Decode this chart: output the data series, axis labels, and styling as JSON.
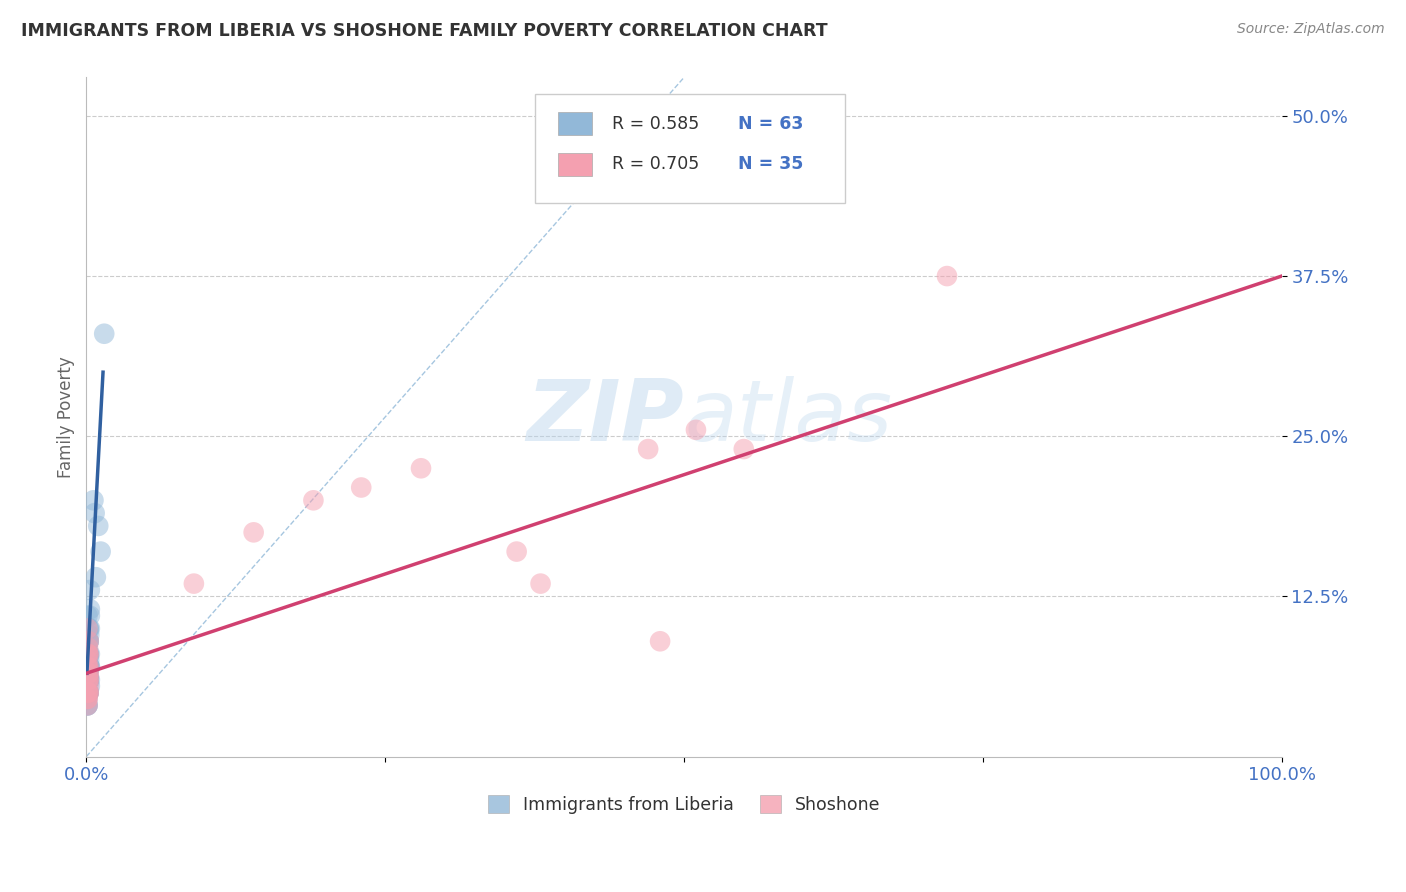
{
  "title": "IMMIGRANTS FROM LIBERIA VS SHOSHONE FAMILY POVERTY CORRELATION CHART",
  "source_text": "Source: ZipAtlas.com",
  "ylabel": "Family Poverty",
  "watermark": "ZIPatlas",
  "xlim": [
    0.0,
    1.0
  ],
  "ylim": [
    0.0,
    0.53
  ],
  "xticks": [
    0.0,
    0.25,
    0.5,
    0.75,
    1.0
  ],
  "xtick_labels": [
    "0.0%",
    "",
    "",
    "",
    "100.0%"
  ],
  "ytick_positions": [
    0.125,
    0.25,
    0.375,
    0.5
  ],
  "ytick_labels": [
    "12.5%",
    "25.0%",
    "37.5%",
    "50.0%"
  ],
  "series1_color": "#92b8d8",
  "series2_color": "#f4a0b0",
  "trend1_color": "#3060a0",
  "trend2_color": "#d04070",
  "legend_r1": "R = 0.585",
  "legend_n1": "N = 63",
  "legend_r2": "R = 0.705",
  "legend_n2": "N = 35",
  "legend_label1": "Immigrants from Liberia",
  "legend_label2": "Shoshone",
  "background_color": "#ffffff",
  "grid_color": "#cccccc",
  "blue_scatter_x": [
    0.001,
    0.0015,
    0.002,
    0.001,
    0.002,
    0.003,
    0.001,
    0.002,
    0.001,
    0.002,
    0.003,
    0.002,
    0.001,
    0.0025,
    0.002,
    0.001,
    0.003,
    0.002,
    0.001,
    0.001,
    0.001,
    0.002,
    0.0015,
    0.001,
    0.002,
    0.001,
    0.0025,
    0.002,
    0.001,
    0.002,
    0.003,
    0.001,
    0.002,
    0.001,
    0.002,
    0.002,
    0.001,
    0.001,
    0.002,
    0.003,
    0.001,
    0.002,
    0.001,
    0.002,
    0.002,
    0.001,
    0.002,
    0.003,
    0.001,
    0.002,
    0.003,
    0.002,
    0.002,
    0.001,
    0.002,
    0.003,
    0.008,
    0.006,
    0.01,
    0.007,
    0.012,
    0.015,
    0.003
  ],
  "blue_scatter_y": [
    0.05,
    0.07,
    0.09,
    0.11,
    0.065,
    0.055,
    0.08,
    0.1,
    0.04,
    0.05,
    0.06,
    0.07,
    0.05,
    0.075,
    0.06,
    0.085,
    0.07,
    0.08,
    0.05,
    0.04,
    0.06,
    0.05,
    0.07,
    0.08,
    0.06,
    0.05,
    0.095,
    0.07,
    0.09,
    0.06,
    0.08,
    0.05,
    0.06,
    0.07,
    0.09,
    0.1,
    0.08,
    0.06,
    0.05,
    0.07,
    0.04,
    0.06,
    0.045,
    0.08,
    0.07,
    0.06,
    0.09,
    0.1,
    0.05,
    0.06,
    0.11,
    0.08,
    0.07,
    0.05,
    0.06,
    0.115,
    0.14,
    0.2,
    0.18,
    0.19,
    0.16,
    0.33,
    0.13
  ],
  "pink_scatter_x": [
    0.001,
    0.002,
    0.001,
    0.002,
    0.001,
    0.0015,
    0.002,
    0.001,
    0.002,
    0.001,
    0.002,
    0.001,
    0.0015,
    0.002,
    0.001,
    0.002,
    0.001,
    0.002,
    0.001,
    0.002,
    0.001,
    0.001,
    0.002,
    0.09,
    0.14,
    0.19,
    0.23,
    0.28,
    0.36,
    0.47,
    0.55,
    0.72,
    0.51,
    0.38,
    0.48
  ],
  "pink_scatter_y": [
    0.05,
    0.065,
    0.075,
    0.055,
    0.045,
    0.085,
    0.06,
    0.08,
    0.05,
    0.07,
    0.06,
    0.05,
    0.08,
    0.09,
    0.1,
    0.07,
    0.06,
    0.08,
    0.07,
    0.05,
    0.045,
    0.04,
    0.065,
    0.135,
    0.175,
    0.2,
    0.21,
    0.225,
    0.16,
    0.24,
    0.24,
    0.375,
    0.255,
    0.135,
    0.09
  ],
  "blue_trend_x": [
    0.0005,
    0.014
  ],
  "blue_trend_y": [
    0.065,
    0.3
  ],
  "pink_trend_x": [
    0.0,
    1.0
  ],
  "pink_trend_y": [
    0.065,
    0.375
  ],
  "ref_line_x": [
    0.0,
    0.5
  ],
  "ref_line_y": [
    0.0,
    0.53
  ]
}
